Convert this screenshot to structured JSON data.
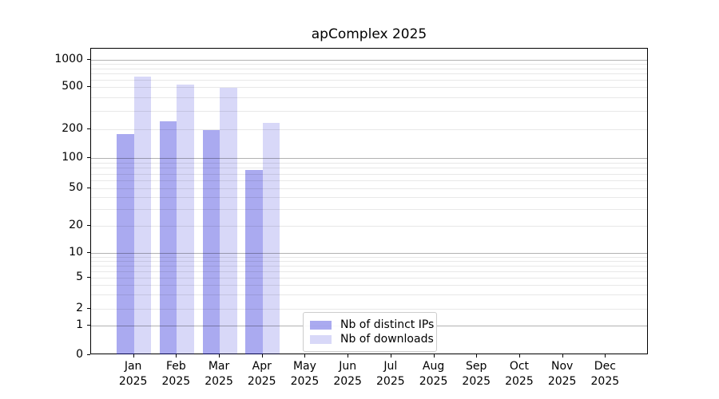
{
  "chart_data": {
    "type": "bar",
    "title": "apComplex 2025",
    "scale": "symlog",
    "grid": "both",
    "legend_position": "lower center",
    "x_labels": [
      {
        "line1": "Jan",
        "line2": "2025"
      },
      {
        "line1": "Feb",
        "line2": "2025"
      },
      {
        "line1": "Mar",
        "line2": "2025"
      },
      {
        "line1": "Apr",
        "line2": "2025"
      },
      {
        "line1": "May",
        "line2": "2025"
      },
      {
        "line1": "Jun",
        "line2": "2025"
      },
      {
        "line1": "Jul",
        "line2": "2025"
      },
      {
        "line1": "Aug",
        "line2": "2025"
      },
      {
        "line1": "Sep",
        "line2": "2025"
      },
      {
        "line1": "Oct",
        "line2": "2025"
      },
      {
        "line1": "Nov",
        "line2": "2025"
      },
      {
        "line1": "Dec",
        "line2": "2025"
      }
    ],
    "y_ticks": [
      0,
      1,
      2,
      5,
      10,
      20,
      50,
      100,
      200,
      500,
      1000
    ],
    "y_minor_gridlines": [
      2,
      3,
      4,
      5,
      6,
      7,
      8,
      9,
      20,
      30,
      40,
      50,
      60,
      70,
      80,
      90,
      200,
      300,
      400,
      500,
      600,
      700,
      800,
      900
    ],
    "y_major_gridlines": [
      1,
      10,
      100,
      1000
    ],
    "series": [
      {
        "name": "Nb of distinct IPs",
        "color": "rgba(12,12,212,0.35)",
        "values": [
          177,
          238,
          197,
          76,
          null,
          null,
          null,
          null,
          null,
          null,
          null,
          null
        ]
      },
      {
        "name": "Nb of downloads",
        "color": "rgba(12,12,212,0.16)",
        "values": [
          650,
          530,
          490,
          230,
          null,
          null,
          null,
          null,
          null,
          null,
          null,
          null
        ]
      }
    ]
  }
}
